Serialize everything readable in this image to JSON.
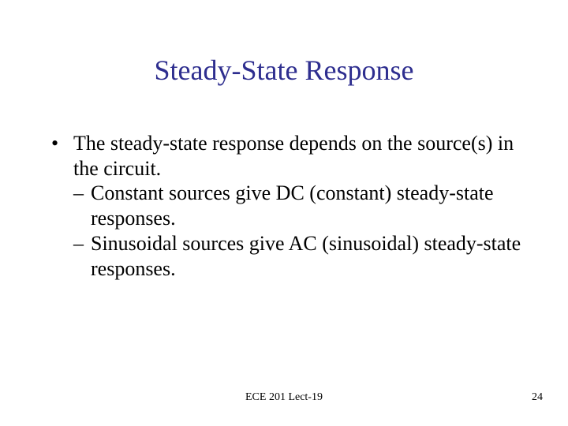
{
  "title": {
    "text": "Steady-State Response",
    "color": "#2e2e8f",
    "fontsize": 36
  },
  "bullets": {
    "main_text": "The steady-state response depends on the source(s) in the circuit.",
    "main_marker": "•",
    "sub1_marker": "–",
    "sub1_text": "Constant sources give DC (constant) steady-state responses.",
    "sub2_marker": "–",
    "sub2_text": "Sinusoidal sources give AC (sinusoidal) steady-state responses."
  },
  "footer": {
    "center": "ECE 201 Lect-19",
    "page": "24"
  },
  "colors": {
    "title": "#2e2e8f",
    "body": "#000000",
    "background": "#ffffff"
  }
}
